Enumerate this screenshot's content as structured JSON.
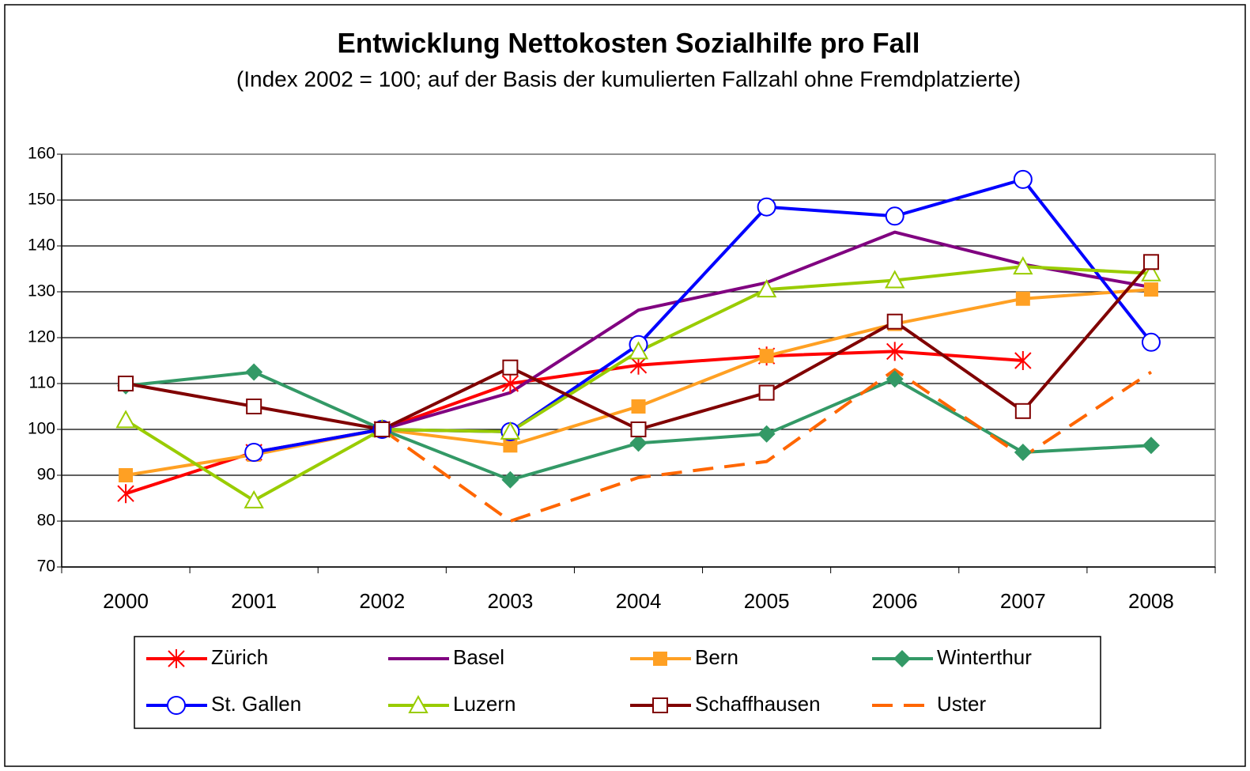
{
  "chart_data": {
    "type": "line",
    "title": "Entwicklung Nettokosten Sozialhilfe pro Fall",
    "subtitle": "(Index 2002 = 100; auf der Basis der kumulierten Fallzahl ohne Fremdplatzierte)",
    "categories": [
      "2000",
      "2001",
      "2002",
      "2003",
      "2004",
      "2005",
      "2006",
      "2007",
      "2008"
    ],
    "ylim": [
      70,
      160
    ],
    "yticks": [
      70,
      80,
      90,
      100,
      110,
      120,
      130,
      140,
      150,
      160
    ],
    "grid": true,
    "legend": "bottom",
    "series": [
      {
        "name": "Zürich",
        "color": "#ff0000",
        "marker": "asterisk",
        "values": [
          86,
          95,
          100,
          110,
          114,
          116,
          117,
          115,
          null
        ]
      },
      {
        "name": "Basel",
        "color": "#800080",
        "marker": "none",
        "values": [
          null,
          null,
          100,
          108,
          126,
          132,
          143,
          136,
          131
        ]
      },
      {
        "name": "Bern",
        "color": "#ffa023",
        "marker": "square",
        "values": [
          90,
          94.5,
          100,
          96.5,
          105,
          116,
          123,
          128.5,
          130.5
        ]
      },
      {
        "name": "Winterthur",
        "color": "#339966",
        "marker": "diamond",
        "values": [
          109.5,
          112.5,
          100,
          89,
          97,
          99,
          111,
          95,
          96.5
        ]
      },
      {
        "name": "St. Gallen",
        "color": "#0000ff",
        "marker": "circle",
        "values": [
          null,
          95,
          100,
          99.5,
          118.5,
          148.5,
          146.5,
          154.5,
          119
        ]
      },
      {
        "name": "Luzern",
        "color": "#99cc00",
        "marker": "triangle",
        "values": [
          102,
          84.5,
          100,
          99.5,
          117,
          130.5,
          132.5,
          135.5,
          134
        ]
      },
      {
        "name": "Schaffhausen",
        "color": "#800000",
        "marker": "open-square",
        "values": [
          110,
          105,
          100,
          113.5,
          100,
          108,
          123.5,
          104,
          136.5
        ]
      },
      {
        "name": "Uster",
        "color": "#ff6600",
        "marker": "none",
        "dash": true,
        "values": [
          null,
          null,
          100,
          80,
          89.5,
          93,
          113,
          94,
          112.5
        ]
      }
    ]
  }
}
